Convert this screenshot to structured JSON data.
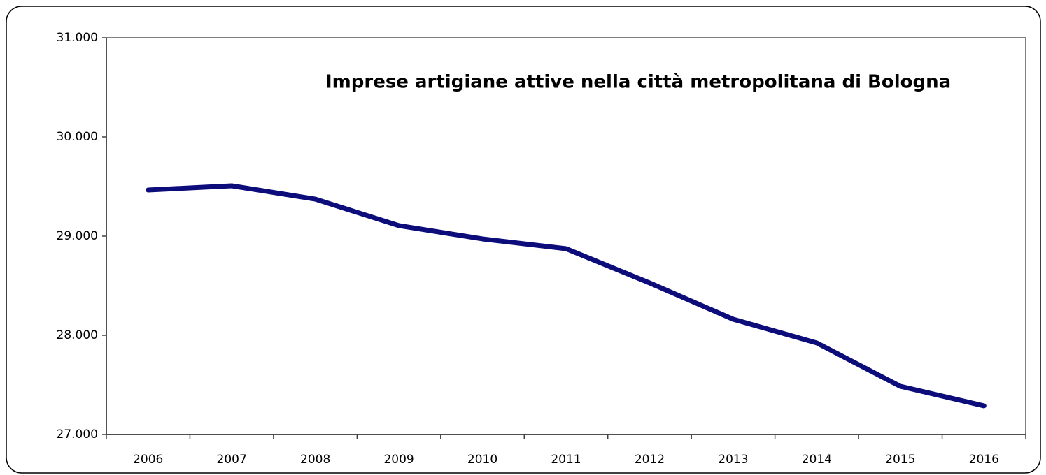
{
  "chart_data": {
    "type": "line",
    "title": "Imprese artigiane attive nella città metropolitana di Bologna",
    "categories": [
      "2006",
      "2007",
      "2008",
      "2009",
      "2010",
      "2011",
      "2012",
      "2013",
      "2014",
      "2015",
      "2016"
    ],
    "series": [
      {
        "color": "#0c0c7a",
        "values": [
          29465,
          29507,
          29373,
          29106,
          28972,
          28873,
          28528,
          28162,
          27923,
          27486,
          27289
        ]
      }
    ],
    "ylim": [
      27000,
      31000
    ],
    "yticks": [
      {
        "value": 27000,
        "label": "27.000"
      },
      {
        "value": 28000,
        "label": "28.000"
      },
      {
        "value": 29000,
        "label": "29.000"
      },
      {
        "value": 30000,
        "label": "30.000"
      },
      {
        "value": 31000,
        "label": "31.000"
      }
    ],
    "grid": false
  }
}
